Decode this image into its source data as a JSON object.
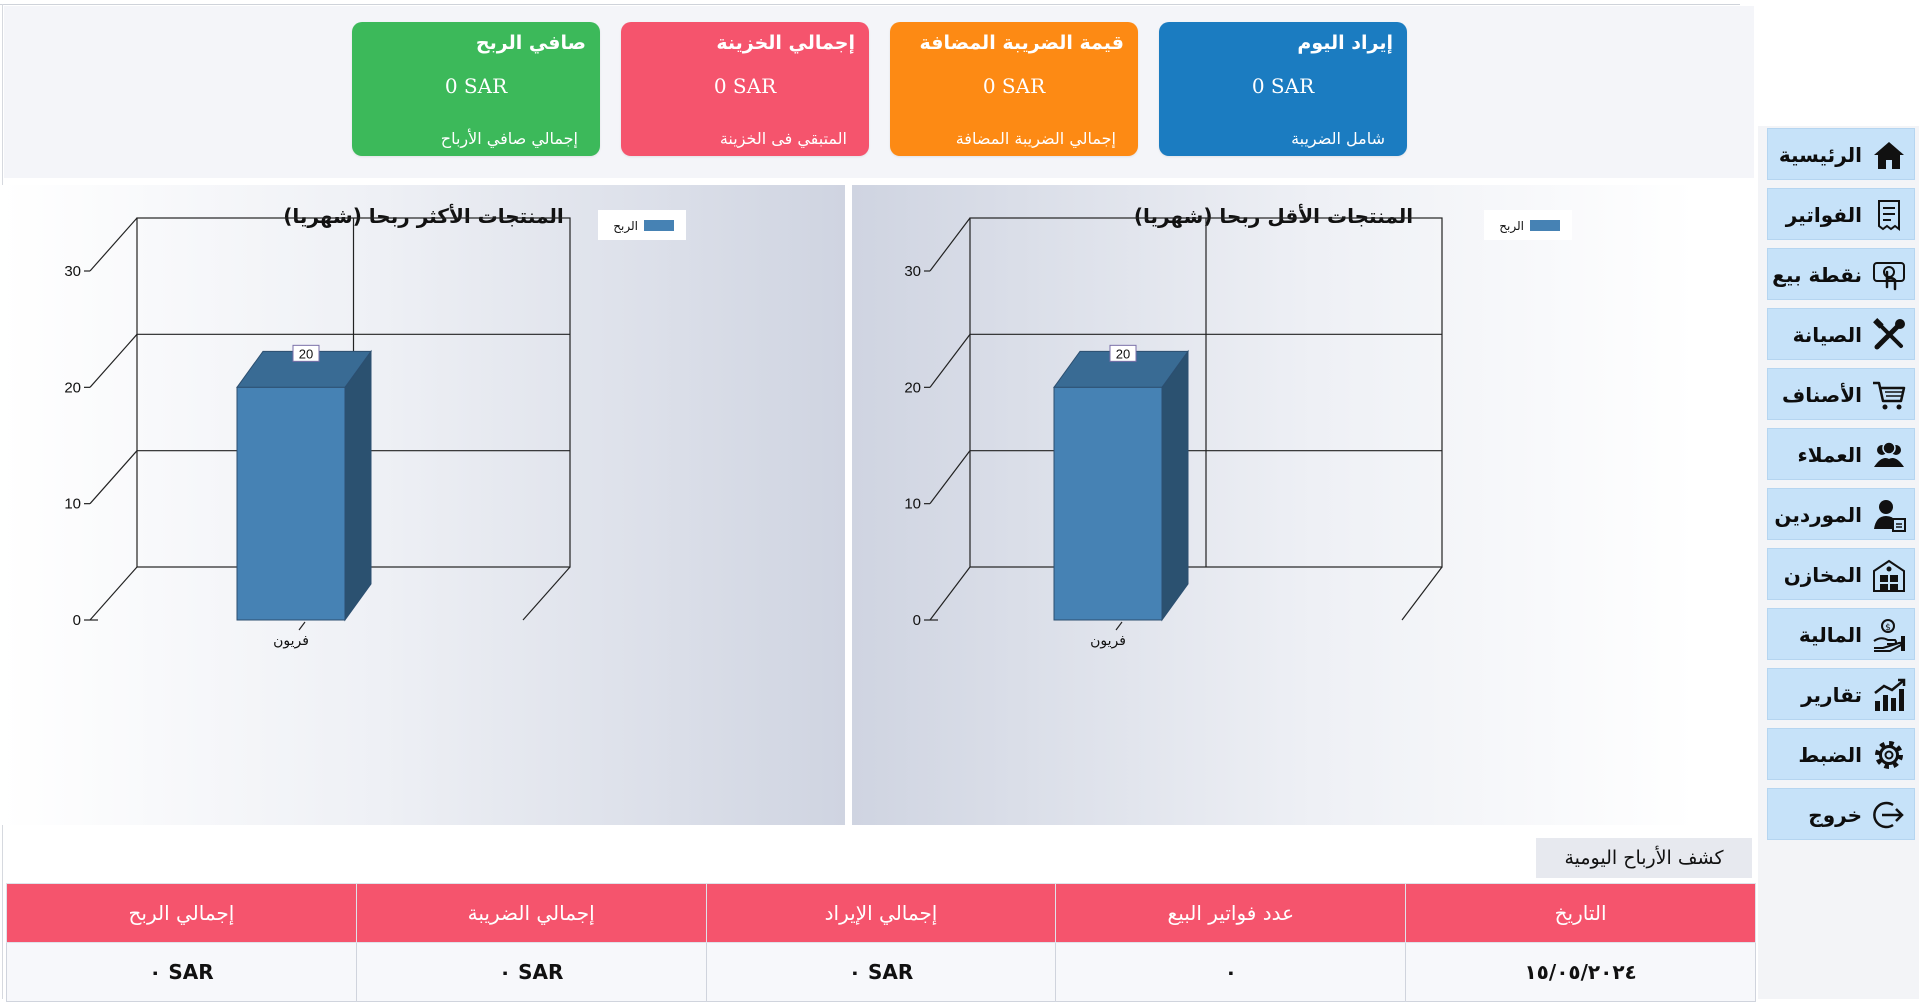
{
  "cards": [
    {
      "title": "صافي الربح",
      "value": "0  SAR",
      "subtitle": "إجمالي صافي الأرباح",
      "color": "#3cb95a"
    },
    {
      "title": "إجمالي الخزينة",
      "value": "0  SAR",
      "subtitle": "المتبقي فى الخزينة",
      "color": "#f5546d"
    },
    {
      "title": "قيمة الضريبة المضافة",
      "value": "0  SAR",
      "subtitle": "إجمالي الضريبة المضافة",
      "color": "#fd8a14"
    },
    {
      "title": "إيراد اليوم",
      "value": "0  SAR",
      "subtitle": "شامل الضريبة",
      "color": "#1b7cc1"
    }
  ],
  "sidebar": {
    "items": [
      {
        "label": "الرئيسية",
        "icon": "home-icon"
      },
      {
        "label": "الفواتير",
        "icon": "invoice-icon"
      },
      {
        "label": "نقطة بيع",
        "icon": "touch-pos-icon"
      },
      {
        "label": "الصيانة",
        "icon": "tools-icon"
      },
      {
        "label": "الأصناف",
        "icon": "cart-icon"
      },
      {
        "label": "العملاء",
        "icon": "users-icon"
      },
      {
        "label": "الموردين",
        "icon": "supplier-icon"
      },
      {
        "label": "المخازن",
        "icon": "warehouse-icon"
      },
      {
        "label": "المالية",
        "icon": "finance-icon"
      },
      {
        "label": "تقارير",
        "icon": "chart-icon"
      },
      {
        "label": "الضبط",
        "icon": "gear-icon"
      },
      {
        "label": "خروج",
        "icon": "logout-icon"
      }
    ]
  },
  "chart_data": [
    {
      "type": "bar",
      "title": "المنتجات الأكثر ربحا (شهريا)",
      "categories": [
        "فريون"
      ],
      "series": [
        {
          "name": "الربح",
          "values": [
            20
          ],
          "color": "#4682b4"
        }
      ],
      "data_labels": [
        "20"
      ],
      "ylim": [
        0,
        30
      ],
      "yticks": [
        0,
        10,
        20,
        30
      ],
      "grid": true,
      "three_d": true,
      "legend": "top-right"
    },
    {
      "type": "bar",
      "title": "المنتجات الأقل ربحا (شهريا)",
      "categories": [
        "فريون"
      ],
      "series": [
        {
          "name": "الربح",
          "values": [
            20
          ],
          "color": "#4682b4"
        }
      ],
      "data_labels": [
        "20"
      ],
      "ylim": [
        0,
        30
      ],
      "yticks": [
        0,
        10,
        20,
        30
      ],
      "grid": true,
      "three_d": true,
      "legend": "top-right"
    }
  ],
  "daily_profit": {
    "tab_label": "كشف الأرباح اليومية",
    "columns": [
      "التاريخ",
      "عدد فواتير البيع",
      "إجمالي الإيراد",
      "إجمالي الضريبة",
      "إجمالي الربح"
    ],
    "rows": [
      [
        "١٥/٠٥/٢٠٢٤",
        "٠",
        "SAR ٠",
        "SAR ٠",
        "SAR ٠"
      ]
    ]
  }
}
